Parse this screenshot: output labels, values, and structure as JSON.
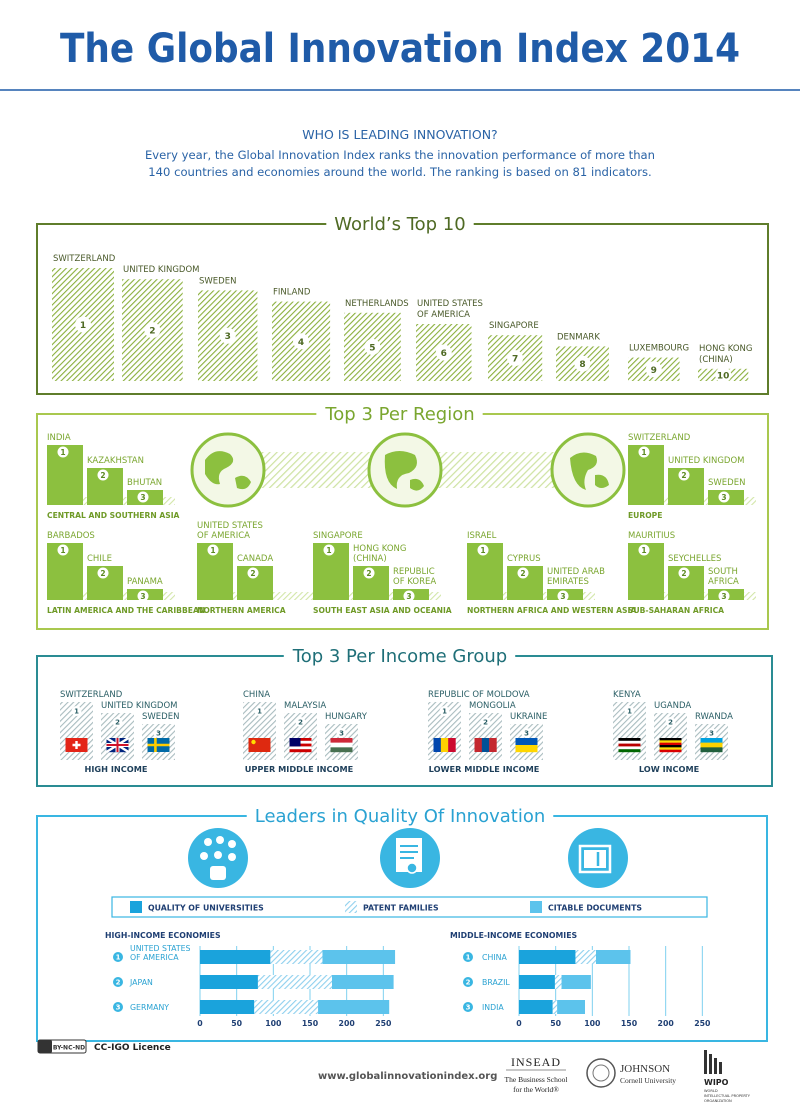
{
  "header": {
    "title": "The Global Innovation Index 2014"
  },
  "intro": {
    "heading": "WHO IS LEADING INNOVATION?",
    "lines": [
      "Every year, the Global Innovation Index ranks the innovation performance of more than",
      "140 countries and economies around the world. The ranking is based on 81 indicators."
    ]
  },
  "top10": {
    "title": "World’s Top 10",
    "items": [
      {
        "name": "SWITZERLAND",
        "rank": 1
      },
      {
        "name": "UNITED KINGDOM",
        "rank": 2
      },
      {
        "name": "SWEDEN",
        "rank": 3
      },
      {
        "name": "FINLAND",
        "rank": 4
      },
      {
        "name": "NETHERLANDS",
        "rank": 5
      },
      {
        "name": [
          "UNITED STATES",
          "OF AMERICA"
        ],
        "rank": 6
      },
      {
        "name": "SINGAPORE",
        "rank": 7
      },
      {
        "name": "DENMARK",
        "rank": 8
      },
      {
        "name": "LUXEMBOURG",
        "rank": 9
      },
      {
        "name": [
          "HONG KONG",
          "(CHINA)"
        ],
        "rank": 10
      }
    ]
  },
  "regions": {
    "title": "Top 3 Per Region",
    "groups": [
      {
        "name": "CENTRAL AND SOUTHERN ASIA",
        "countries": [
          {
            "name": "INDIA",
            "rank": 1
          },
          {
            "name": "KAZAKHSTAN",
            "rank": 2
          },
          {
            "name": "BHUTAN",
            "rank": 3
          }
        ]
      },
      {
        "name": "EUROPE",
        "countries": [
          {
            "name": "SWITZERLAND",
            "rank": 1
          },
          {
            "name": "UNITED KINGDOM",
            "rank": 2
          },
          {
            "name": "SWEDEN",
            "rank": 3
          }
        ]
      },
      {
        "name": "LATIN AMERICA AND THE CARIBBEAN",
        "countries": [
          {
            "name": "BARBADOS",
            "rank": 1
          },
          {
            "name": "CHILE",
            "rank": 2
          },
          {
            "name": "PANAMA",
            "rank": 3
          }
        ]
      },
      {
        "name": "NORTHERN AMERICA",
        "countries": [
          {
            "name": [
              "UNITED STATES",
              "OF AMERICA"
            ],
            "rank": 1
          },
          {
            "name": "CANADA",
            "rank": 2
          }
        ]
      },
      {
        "name": "SOUTH EAST ASIA AND OCEANIA",
        "countries": [
          {
            "name": "SINGAPORE",
            "rank": 1
          },
          {
            "name": [
              "HONG KONG",
              "(CHINA)"
            ],
            "rank": 2
          },
          {
            "name": [
              "REPUBLIC",
              "OF KOREA"
            ],
            "rank": 3
          }
        ]
      },
      {
        "name": "NORTHERN AFRICA AND WESTERN ASIA",
        "countries": [
          {
            "name": "ISRAEL",
            "rank": 1
          },
          {
            "name": "CYPRUS",
            "rank": 2
          },
          {
            "name": [
              "UNITED ARAB",
              "EMIRATES"
            ],
            "rank": 3
          }
        ]
      },
      {
        "name": "SUB-SAHARAN AFRICA",
        "countries": [
          {
            "name": "MAURITIUS",
            "rank": 1
          },
          {
            "name": "SEYCHELLES",
            "rank": 2
          },
          {
            "name": [
              "SOUTH",
              "AFRICA"
            ],
            "rank": 3
          }
        ]
      }
    ]
  },
  "income_groups": {
    "title": "Top 3 Per Income Group",
    "groups": [
      {
        "name": "HIGH INCOME",
        "countries": [
          {
            "name": "SWITZERLAND",
            "rank": 1
          },
          {
            "name": "UNITED KINGDOM",
            "rank": 2
          },
          {
            "name": "SWEDEN",
            "rank": 3
          }
        ]
      },
      {
        "name": "UPPER MIDDLE INCOME",
        "countries": [
          {
            "name": "CHINA",
            "rank": 1
          },
          {
            "name": "MALAYSIA",
            "rank": 2
          },
          {
            "name": "HUNGARY",
            "rank": 3
          }
        ]
      },
      {
        "name": "LOWER MIDDLE INCOME",
        "countries": [
          {
            "name": "REPUBLIC OF MOLDOVA",
            "rank": 1
          },
          {
            "name": "MONGOLIA",
            "rank": 2
          },
          {
            "name": "UKRAINE",
            "rank": 3
          }
        ]
      },
      {
        "name": "LOW INCOME",
        "countries": [
          {
            "name": "KENYA",
            "rank": 1
          },
          {
            "name": "UGANDA",
            "rank": 2
          },
          {
            "name": "RWANDA",
            "rank": 3
          }
        ]
      }
    ]
  },
  "quality": {
    "title": "Leaders in Quality Of Innovation"
  },
  "chart_data": [
    {
      "type": "bar",
      "orientation": "horizontal",
      "stacked": true,
      "title": "HIGH-INCOME ECONOMIES",
      "ranks": [
        1,
        2,
        3
      ],
      "categories": [
        [
          "UNITED STATES",
          "OF AMERICA"
        ],
        "JAPAN",
        "GERMANY"
      ],
      "series": [
        {
          "name": "QUALITY OF UNIVERSITIES",
          "color": "#1aa3dc",
          "values": [
            96,
            79,
            74
          ]
        },
        {
          "name": "PATENT FAMILIES",
          "color": "#8fd0ee",
          "hatch": true,
          "values": [
            71,
            101,
            87
          ]
        },
        {
          "name": "CITABLE DOCUMENTS",
          "color": "#5cc3ec",
          "values": [
            99,
            84,
            97
          ]
        }
      ],
      "xlim": [
        0,
        270
      ],
      "xticks": [
        0,
        50,
        100,
        150,
        200,
        250
      ]
    },
    {
      "type": "bar",
      "orientation": "horizontal",
      "stacked": true,
      "title": "MIDDLE-INCOME ECONOMIES",
      "ranks": [
        1,
        2,
        3
      ],
      "categories": [
        "CHINA",
        "BRAZIL",
        "INDIA"
      ],
      "series": [
        {
          "color": "#1aa3dc",
          "values": [
            77,
            49,
            46
          ]
        },
        {
          "color": "#8fd0ee",
          "hatch": true,
          "values": [
            28,
            9,
            6
          ]
        },
        {
          "color": "#5cc3ec",
          "values": [
            47,
            40,
            38
          ]
        }
      ],
      "xlim": [
        0,
        270
      ],
      "xticks": [
        0,
        50,
        100,
        150,
        200,
        250
      ]
    }
  ],
  "footer": {
    "licence_badge": "BY-NC-ND",
    "licence": "CC-IGO Licence",
    "url": "www.globalinnovationindex.org",
    "insead": {
      "name": "INSEAD",
      "tagline": [
        "The Business School",
        "for the World®"
      ]
    },
    "johnson": {
      "name": "JOHNSON",
      "sub": "Cornell University"
    },
    "wipo": {
      "name": "WIPO",
      "sub": [
        "WORLD",
        "INTELLECTUAL PROPERTY",
        "ORGANIZATION"
      ]
    }
  }
}
